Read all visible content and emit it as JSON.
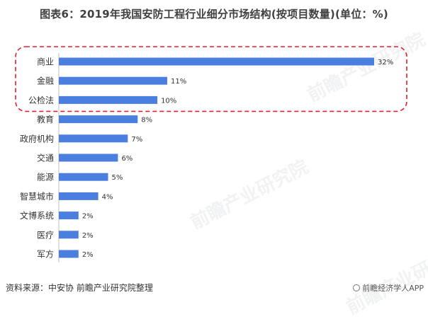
{
  "title": "图表6：2019年我国安防工程行业细分市场结构(按项目数量)(单位：%)",
  "source": "资料来源：中安协 前瞻产业研究院整理",
  "brand": "前瞻经济学人APP",
  "watermark": "前瞻产业研究院",
  "colors": {
    "bar": "#4a7fe0",
    "highlight_border": "#e0202e"
  },
  "chart_data": {
    "type": "bar",
    "orientation": "horizontal",
    "categories": [
      "商业",
      "金融",
      "公检法",
      "教育",
      "政府机构",
      "交通",
      "能源",
      "智慧城市",
      "文博系统",
      "医疗",
      "军方"
    ],
    "values": [
      32,
      11,
      10,
      8,
      7,
      6,
      5,
      4,
      2,
      2,
      2
    ],
    "value_labels": [
      "32%",
      "11%",
      "10%",
      "8%",
      "7%",
      "6%",
      "5%",
      "4%",
      "2%",
      "2%",
      "2%"
    ],
    "unit": "%",
    "xlim": [
      0,
      32
    ],
    "highlighted_categories": [
      "商业",
      "金融",
      "公检法"
    ],
    "title": "图表6：2019年我国安防工程行业细分市场结构(按项目数量)(单位：%)",
    "xlabel": "",
    "ylabel": "",
    "grid": false,
    "legend": false
  }
}
